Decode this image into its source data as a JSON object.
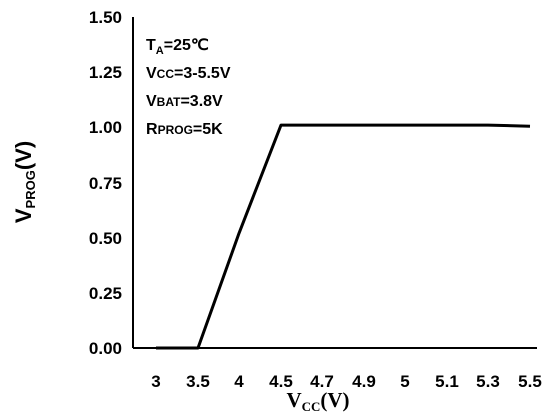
{
  "chart_data": {
    "type": "line",
    "categories": [
      "3",
      "3.5",
      "4",
      "4.5",
      "4.7",
      "4.9",
      "5",
      "5.1",
      "5.3",
      "5.5"
    ],
    "series": [
      {
        "values": [
          0.0,
          0.0,
          0.52,
          1.01,
          1.01,
          1.01,
          1.01,
          1.01,
          1.01,
          1.005
        ]
      }
    ],
    "yticks": [
      "0.00",
      "0.25",
      "0.50",
      "0.75",
      "1.00",
      "1.25",
      "1.50"
    ],
    "ylim": [
      0,
      1.5
    ],
    "ylabel": {
      "main": "V",
      "sub": "PROG",
      "rest": "(V)"
    },
    "xlabel": {
      "main": "V",
      "sub": "CC",
      "rest": "(V)"
    },
    "annotations": {
      "ta": {
        "main": "T",
        "sub": "A",
        "rest": "=25℃"
      },
      "vcc": {
        "main": "V",
        "small": "CC",
        "rest": "=3-5.5V"
      },
      "vbat": {
        "main": "V",
        "small": "BAT",
        "rest": "=3.8V"
      },
      "rprog": {
        "main": "R",
        "small": "PROG",
        "rest": "=5K"
      }
    },
    "grid": false,
    "colors": {
      "line": "#000000",
      "axis": "#000000"
    }
  }
}
